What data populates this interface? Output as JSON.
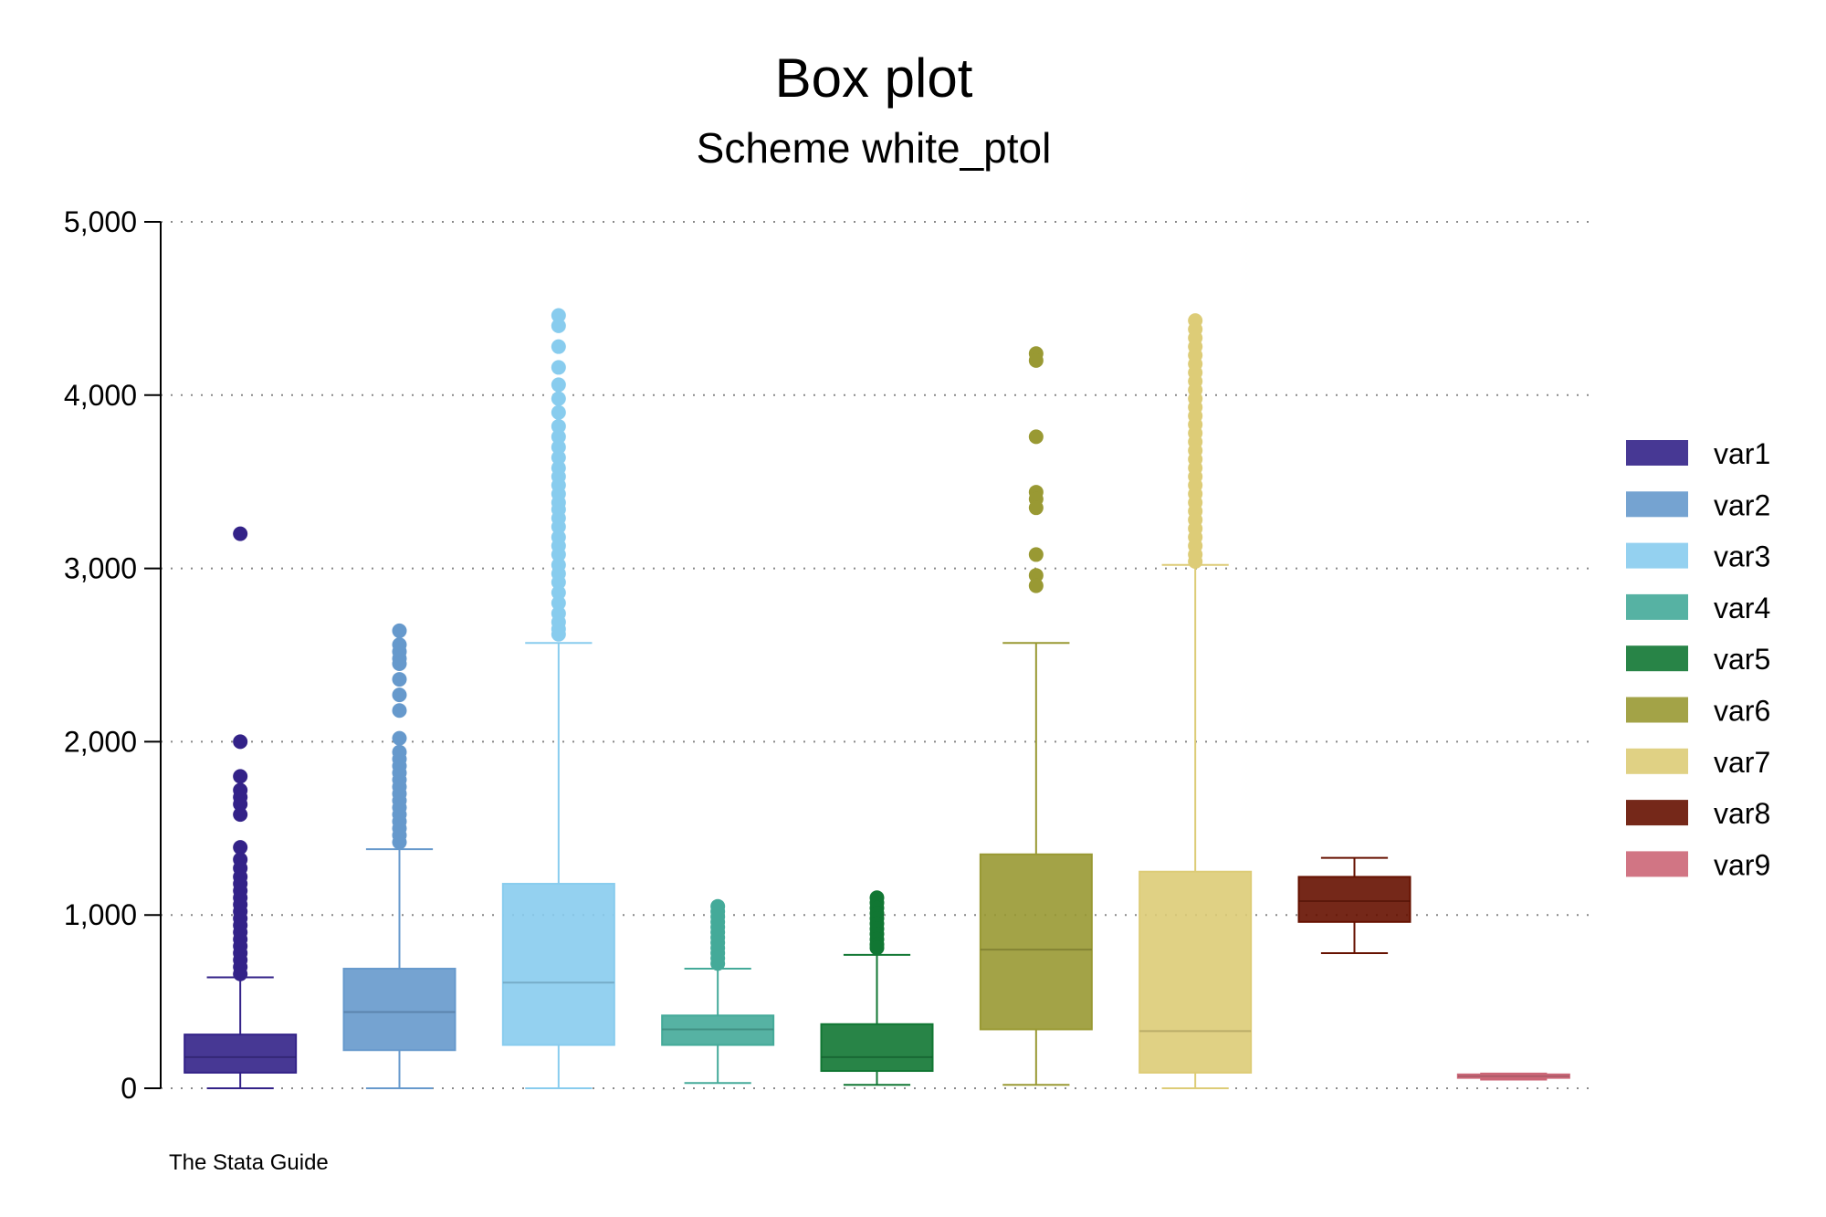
{
  "chart_data": {
    "type": "box",
    "title": "Box plot",
    "subtitle": "Scheme white_ptol",
    "note": "The Stata Guide",
    "xlabel": "",
    "ylabel": "",
    "ylim": [
      0,
      5000
    ],
    "y_ticks": [
      0,
      1000,
      2000,
      3000,
      4000,
      5000
    ],
    "y_tick_labels": [
      "0",
      "1,000",
      "2,000",
      "3,000",
      "4,000",
      "5,000"
    ],
    "grid": "horizontal dotted",
    "legend_position": "right",
    "series": [
      {
        "name": "var1",
        "color": "#332288",
        "min": 0,
        "q1": 90,
        "median": 180,
        "q3": 310,
        "max": 640,
        "outliers": [
          3200,
          2000,
          1800,
          1720,
          1680,
          1640,
          1580,
          1390,
          1320,
          1270,
          1220,
          1180,
          1140,
          1100,
          1060,
          1020,
          980,
          940,
          900,
          860,
          820,
          780,
          740,
          700,
          660
        ]
      },
      {
        "name": "var2",
        "color": "#6699cc",
        "min": 0,
        "q1": 220,
        "median": 440,
        "q3": 690,
        "max": 1380,
        "outliers": [
          2640,
          2560,
          2520,
          2480,
          2450,
          2360,
          2270,
          2180,
          2020,
          1940,
          1900,
          1860,
          1820,
          1780,
          1740,
          1700,
          1660,
          1620,
          1580,
          1540,
          1500,
          1460,
          1420
        ]
      },
      {
        "name": "var3",
        "color": "#88ccee",
        "min": 0,
        "q1": 250,
        "median": 610,
        "q3": 1180,
        "max": 2570,
        "outliers": [
          4460,
          4400,
          4280,
          4160,
          4060,
          3980,
          3900,
          3820,
          3760,
          3700,
          3640,
          3580,
          3530,
          3480,
          3430,
          3380,
          3340,
          3290,
          3240,
          3180,
          3130,
          3080,
          3020,
          2970,
          2920,
          2860,
          2800,
          2740,
          2690,
          2650,
          2620
        ]
      },
      {
        "name": "var4",
        "color": "#44aa99",
        "min": 30,
        "q1": 250,
        "median": 340,
        "q3": 420,
        "max": 690,
        "outliers": [
          1050,
          1020,
          990,
          960,
          930,
          900,
          870,
          840,
          810,
          780,
          750,
          720
        ]
      },
      {
        "name": "var5",
        "color": "#117733",
        "min": 20,
        "q1": 100,
        "median": 180,
        "q3": 370,
        "max": 770,
        "outliers": [
          1100,
          1070,
          1040,
          1010,
          980,
          950,
          920,
          890,
          860,
          830,
          810
        ]
      },
      {
        "name": "var6",
        "color": "#999933",
        "min": 20,
        "q1": 340,
        "median": 800,
        "q3": 1350,
        "max": 2570,
        "outliers": [
          4240,
          4200,
          3760,
          3440,
          3400,
          3350,
          3080,
          2960,
          2900
        ]
      },
      {
        "name": "var7",
        "color": "#ddcc77",
        "min": 0,
        "q1": 90,
        "median": 330,
        "q3": 1250,
        "max": 3020,
        "outliers": [
          4430,
          4380,
          4330,
          4280,
          4230,
          4180,
          4130,
          4080,
          4030,
          3980,
          3930,
          3880,
          3830,
          3780,
          3730,
          3680,
          3630,
          3580,
          3530,
          3480,
          3430,
          3380,
          3330,
          3280,
          3230,
          3180,
          3130,
          3080,
          3040
        ]
      },
      {
        "name": "var8",
        "color": "#661100",
        "min": 780,
        "q1": 960,
        "median": 1080,
        "q3": 1220,
        "max": 1330,
        "outliers": []
      },
      {
        "name": "var9",
        "color": "#cc6677",
        "min": 50,
        "q1": 60,
        "median": 70,
        "q3": 80,
        "max": 85,
        "outliers": []
      }
    ]
  }
}
